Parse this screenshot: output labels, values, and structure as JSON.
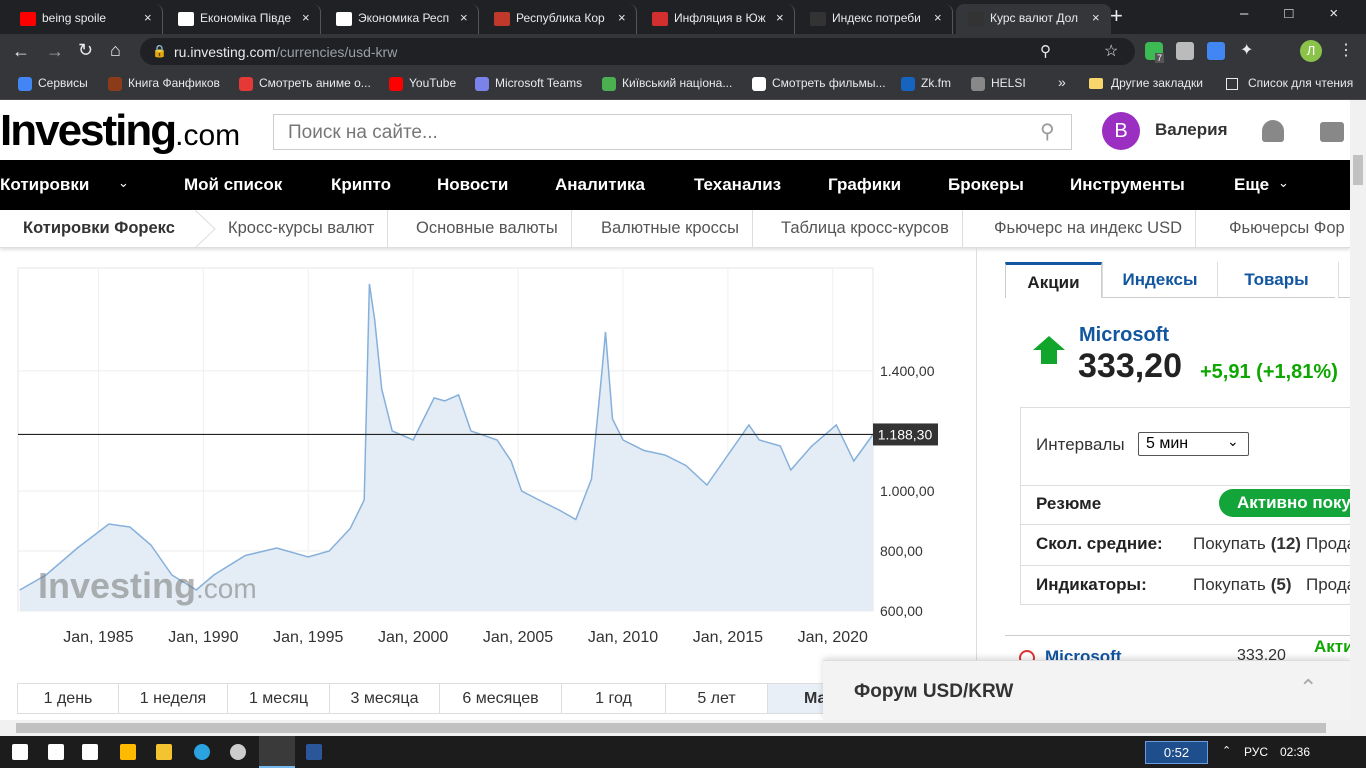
{
  "browser": {
    "tabs": [
      "being spoile",
      "Економіка Півде",
      "Экономика Респ",
      "Республика Кор",
      "Инфляция в Юж",
      "Индекс потреби",
      "Курс валют Дол"
    ],
    "active_tab": 6,
    "url_host": "ru.investing.com",
    "url_path": "/currencies/usd-krw",
    "bookmarks": [
      "Сервисы",
      "Книга Фанфиков",
      "Смотреть аниме о...",
      "YouTube",
      "Microsoft Teams",
      "Київський націона...",
      "Смотреть фильмы...",
      "Zk.fm",
      "HELSI"
    ],
    "other_bookmarks": "Другие закладки",
    "reading_list": "Список для чтения",
    "extension_badge": "7",
    "profile": "Л"
  },
  "site": {
    "logo": "Investing",
    "logo_suffix": ".com",
    "search": "Поиск на сайте...",
    "avatar": "В",
    "user": "Валерия",
    "nav": [
      "Котировки",
      "Мой список",
      "Крипто",
      "Новости",
      "Аналитика",
      "Теханализ",
      "Графики",
      "Брокеры",
      "Инструменты",
      "Еще"
    ],
    "subnav": [
      "Котировки Форекс",
      "Кросс-курсы валют",
      "Основные валюты",
      "Валютные кроссы",
      "Таблица кросс-курсов",
      "Фьючерс на индекс USD",
      "Фьючерсы Фор"
    ]
  },
  "chart_data": {
    "type": "area",
    "x": [
      "1981-04",
      "1982-07",
      "1984-01",
      "1985-07",
      "1986-07",
      "1987-07",
      "1988-07",
      "1989-09",
      "1990-07",
      "1992-01",
      "1993-07",
      "1995-01",
      "1996-01",
      "1997-01",
      "1997-09",
      "1997-12",
      "1998-03",
      "1998-07",
      "1999-01",
      "2000-01",
      "2001-01",
      "2001-07",
      "2002-03",
      "2002-10",
      "2004-01",
      "2004-09",
      "2005-03",
      "2006-01",
      "2007-01",
      "2007-10",
      "2008-07",
      "2009-01",
      "2009-03",
      "2009-07",
      "2010-01",
      "2011-01",
      "2012-01",
      "2013-01",
      "2014-01",
      "2015-01",
      "2016-01",
      "2016-07",
      "2017-07",
      "2018-01",
      "2019-01",
      "2020-03",
      "2021-01",
      "2021-12"
    ],
    "values": [
      670,
      720,
      810,
      890,
      880,
      820,
      720,
      670,
      720,
      785,
      810,
      780,
      800,
      875,
      970,
      1690,
      1570,
      1340,
      1200,
      1170,
      1310,
      1300,
      1320,
      1200,
      1170,
      1100,
      1000,
      970,
      935,
      905,
      1040,
      1400,
      1530,
      1240,
      1170,
      1135,
      1120,
      1085,
      1020,
      1120,
      1220,
      1170,
      1150,
      1070,
      1150,
      1220,
      1100,
      1188.3
    ],
    "color": "#86b0da",
    "fill": "#e4edf5",
    "xlim": [
      "1981-03",
      "2021-12"
    ],
    "xticks": [
      {
        "value": "1985-01",
        "label": "Jan, 1985"
      },
      {
        "value": "1990-01",
        "label": "Jan, 1990"
      },
      {
        "value": "1995-01",
        "label": "Jan, 1995"
      },
      {
        "value": "2000-01",
        "label": "Jan, 2000"
      },
      {
        "value": "2005-01",
        "label": "Jan, 2005"
      },
      {
        "value": "2010-01",
        "label": "Jan, 2010"
      },
      {
        "value": "2015-01",
        "label": "Jan, 2015"
      },
      {
        "value": "2020-01",
        "label": "Jan, 2020"
      }
    ],
    "ylim": [
      600,
      1743
    ],
    "yticks": [
      {
        "value": 600,
        "label": "600,00"
      },
      {
        "value": 800,
        "label": "800,00"
      },
      {
        "value": 1000,
        "label": "1.000,00"
      },
      {
        "value": 1400,
        "label": "1.400,00"
      }
    ],
    "current": {
      "value": 1188.3,
      "label": "1.188,30"
    },
    "grid": true
  },
  "ranges": [
    "1 день",
    "1 неделя",
    "1 месяц",
    "3 месяца",
    "6 месяцев",
    "1 год",
    "5 лет",
    "Макс"
  ],
  "active_range": 7,
  "sidebar": {
    "tabs": [
      "Акции",
      "Индексы",
      "Товары"
    ],
    "quote": {
      "name": "Microsoft",
      "price": "333,20",
      "change": "+5,91 (+1,81%)"
    },
    "intervals_label": "Интервалы",
    "interval": "5 мин",
    "summary_label": "Резюме",
    "summary": "Активно покупать",
    "rows": [
      {
        "label": "Скол. средние:",
        "buy": "Покупать",
        "buy_count": "(12)",
        "sell": "Продавать"
      },
      {
        "label": "Индикаторы:",
        "buy": "Покупать",
        "buy_count": "(5)",
        "sell": "Продавать"
      }
    ],
    "list_item": {
      "name": "Microsoft",
      "price": "333,20",
      "signal": "Активно покупать"
    }
  },
  "forum": "Форум USD/KRW",
  "taskbar": {
    "timer": "0:52",
    "language": "РУС",
    "clock": "02:36"
  }
}
